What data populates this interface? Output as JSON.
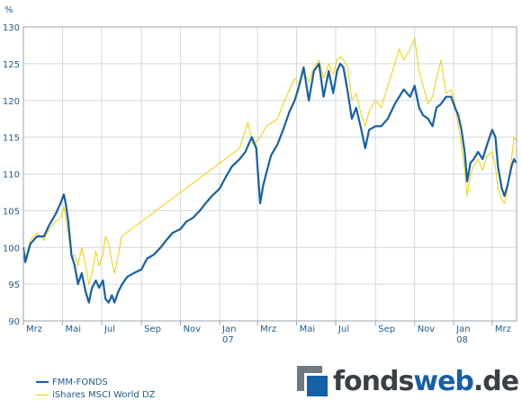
{
  "chart_data": {
    "type": "line",
    "unit_label": "%",
    "ylim": [
      90,
      130
    ],
    "y_ticks": [
      90,
      95,
      100,
      105,
      110,
      115,
      120,
      125,
      130
    ],
    "x_start": "2006-03-01",
    "x_end": "2008-04-08",
    "x_ticks": [
      {
        "date": "2006-03-01",
        "label": "Mrz",
        "year": ""
      },
      {
        "date": "2006-05-01",
        "label": "Mai",
        "year": ""
      },
      {
        "date": "2006-07-01",
        "label": "Jul",
        "year": ""
      },
      {
        "date": "2006-09-01",
        "label": "Sep",
        "year": ""
      },
      {
        "date": "2006-11-01",
        "label": "Nov",
        "year": ""
      },
      {
        "date": "2007-01-01",
        "label": "Jan",
        "year": "07"
      },
      {
        "date": "2007-03-01",
        "label": "Mrz",
        "year": ""
      },
      {
        "date": "2007-05-01",
        "label": "Mai",
        "year": ""
      },
      {
        "date": "2007-07-01",
        "label": "Jul",
        "year": ""
      },
      {
        "date": "2007-09-01",
        "label": "Sep",
        "year": ""
      },
      {
        "date": "2007-11-01",
        "label": "Nov",
        "year": ""
      },
      {
        "date": "2008-01-01",
        "label": "Jan",
        "year": "08"
      },
      {
        "date": "2008-03-01",
        "label": "Mrz",
        "year": ""
      }
    ],
    "grid": true,
    "legend_position": "bottom-left",
    "series": [
      {
        "name": "FMM-FONDS",
        "color": "#1560a8",
        "points": [
          [
            "2006-03-01",
            100
          ],
          [
            "2006-03-04",
            98.0
          ],
          [
            "2006-03-12",
            100.5
          ],
          [
            "2006-03-22",
            101.5
          ],
          [
            "2006-04-02",
            101.5
          ],
          [
            "2006-04-10",
            103.0
          ],
          [
            "2006-04-20",
            104.5
          ],
          [
            "2006-04-28",
            106.0
          ],
          [
            "2006-05-03",
            107.2
          ],
          [
            "2006-05-06",
            106.0
          ],
          [
            "2006-05-10",
            103.5
          ],
          [
            "2006-05-15",
            99.0
          ],
          [
            "2006-05-20",
            97.5
          ],
          [
            "2006-05-25",
            95.0
          ],
          [
            "2006-05-31",
            96.5
          ],
          [
            "2006-06-06",
            94.0
          ],
          [
            "2006-06-11",
            92.5
          ],
          [
            "2006-06-16",
            94.5
          ],
          [
            "2006-06-22",
            95.5
          ],
          [
            "2006-06-27",
            94.5
          ],
          [
            "2006-07-03",
            95.5
          ],
          [
            "2006-07-07",
            93.0
          ],
          [
            "2006-07-12",
            92.5
          ],
          [
            "2006-07-17",
            93.5
          ],
          [
            "2006-07-21",
            92.5
          ],
          [
            "2006-07-27",
            94.0
          ],
          [
            "2006-08-02",
            95.0
          ],
          [
            "2006-08-10",
            96.0
          ],
          [
            "2006-08-20",
            96.5
          ],
          [
            "2006-09-01",
            97.0
          ],
          [
            "2006-09-10",
            98.5
          ],
          [
            "2006-09-20",
            99.0
          ],
          [
            "2006-10-01",
            100.0
          ],
          [
            "2006-10-10",
            101.0
          ],
          [
            "2006-10-20",
            102.0
          ],
          [
            "2006-11-01",
            102.5
          ],
          [
            "2006-11-10",
            103.5
          ],
          [
            "2006-11-20",
            104.0
          ],
          [
            "2006-12-01",
            105.0
          ],
          [
            "2006-12-10",
            106.0
          ],
          [
            "2006-12-20",
            107.0
          ],
          [
            "2007-01-01",
            108.0
          ],
          [
            "2007-01-10",
            109.5
          ],
          [
            "2007-01-20",
            111.0
          ],
          [
            "2007-02-01",
            112.0
          ],
          [
            "2007-02-10",
            113.0
          ],
          [
            "2007-02-20",
            115.0
          ],
          [
            "2007-02-27",
            113.5
          ],
          [
            "2007-03-05",
            106.0
          ],
          [
            "2007-03-10",
            108.5
          ],
          [
            "2007-03-16",
            110.5
          ],
          [
            "2007-03-22",
            112.5
          ],
          [
            "2007-04-01",
            114.0
          ],
          [
            "2007-04-10",
            116.0
          ],
          [
            "2007-04-20",
            118.5
          ],
          [
            "2007-04-28",
            120.0
          ],
          [
            "2007-05-05",
            122.0
          ],
          [
            "2007-05-12",
            124.5
          ],
          [
            "2007-05-20",
            120.0
          ],
          [
            "2007-05-28",
            124.0
          ],
          [
            "2007-06-05",
            125.0
          ],
          [
            "2007-06-12",
            120.5
          ],
          [
            "2007-06-20",
            124.0
          ],
          [
            "2007-06-27",
            121.0
          ],
          [
            "2007-07-03",
            124.0
          ],
          [
            "2007-07-08",
            125.0
          ],
          [
            "2007-07-13",
            124.5
          ],
          [
            "2007-07-20",
            121.0
          ],
          [
            "2007-07-26",
            117.5
          ],
          [
            "2007-08-02",
            119.0
          ],
          [
            "2007-08-10",
            116.0
          ],
          [
            "2007-08-16",
            113.5
          ],
          [
            "2007-08-22",
            116.0
          ],
          [
            "2007-09-01",
            116.5
          ],
          [
            "2007-09-10",
            116.5
          ],
          [
            "2007-09-20",
            117.5
          ],
          [
            "2007-10-01",
            119.5
          ],
          [
            "2007-10-08",
            120.5
          ],
          [
            "2007-10-15",
            121.5
          ],
          [
            "2007-10-25",
            120.5
          ],
          [
            "2007-11-01",
            122.0
          ],
          [
            "2007-11-08",
            119.0
          ],
          [
            "2007-11-14",
            118.0
          ],
          [
            "2007-11-22",
            117.5
          ],
          [
            "2007-11-29",
            116.5
          ],
          [
            "2007-12-05",
            119.0
          ],
          [
            "2007-12-12",
            119.5
          ],
          [
            "2007-12-20",
            120.5
          ],
          [
            "2007-12-28",
            120.5
          ],
          [
            "2008-01-03",
            119.0
          ],
          [
            "2008-01-08",
            118.0
          ],
          [
            "2008-01-13",
            116.0
          ],
          [
            "2008-01-18",
            113.0
          ],
          [
            "2008-01-22",
            109.0
          ],
          [
            "2008-01-27",
            111.5
          ],
          [
            "2008-02-01",
            112.0
          ],
          [
            "2008-02-08",
            113.0
          ],
          [
            "2008-02-15",
            112.0
          ],
          [
            "2008-02-22",
            114.0
          ],
          [
            "2008-03-01",
            116.0
          ],
          [
            "2008-03-06",
            115.0
          ],
          [
            "2008-03-10",
            111.0
          ],
          [
            "2008-03-16",
            108.0
          ],
          [
            "2008-03-20",
            107.0
          ],
          [
            "2008-03-25",
            108.5
          ],
          [
            "2008-03-31",
            111.0
          ],
          [
            "2008-04-04",
            112.0
          ],
          [
            "2008-04-08",
            111.5
          ]
        ]
      },
      {
        "name": "iShares MSCI World DZ",
        "color": "#f5d000",
        "points": [
          [
            "2006-03-01",
            100
          ],
          [
            "2006-03-04",
            98.5
          ],
          [
            "2006-03-12",
            101.0
          ],
          [
            "2006-03-22",
            102.0
          ],
          [
            "2006-04-02",
            101.0
          ],
          [
            "2006-04-10",
            102.5
          ],
          [
            "2006-04-20",
            103.5
          ],
          [
            "2006-04-28",
            104.0
          ],
          [
            "2006-05-03",
            105.5
          ],
          [
            "2006-05-06",
            104.0
          ],
          [
            "2006-05-10",
            102.0
          ],
          [
            "2006-05-15",
            98.5
          ],
          [
            "2006-05-20",
            99.0
          ],
          [
            "2006-05-25",
            97.5
          ],
          [
            "2006-05-31",
            100.0
          ],
          [
            "2006-06-06",
            97.5
          ],
          [
            "2006-06-11",
            95.0
          ],
          [
            "2006-06-16",
            96.5
          ],
          [
            "2006-06-22",
            99.5
          ],
          [
            "2006-06-27",
            97.5
          ],
          [
            "2006-07-03",
            99.0
          ],
          [
            "2006-07-07",
            101.5
          ],
          [
            "2006-07-12",
            100.5
          ],
          [
            "2006-07-17",
            98.0
          ],
          [
            "2006-07-21",
            96.5
          ],
          [
            "2006-07-27",
            99.0
          ],
          [
            "2006-08-01",
            101.5
          ],
          [
            "2007-02-01",
            113.5
          ],
          [
            "2007-02-14",
            117.0
          ],
          [
            "2007-02-22",
            114.0
          ],
          [
            "2007-03-01",
            114.5
          ],
          [
            "2007-03-15",
            116.5
          ],
          [
            "2007-04-01",
            117.5
          ],
          [
            "2007-04-10",
            119.5
          ],
          [
            "2007-04-20",
            121.5
          ],
          [
            "2007-04-28",
            123.0
          ],
          [
            "2007-05-05",
            122.0
          ],
          [
            "2007-05-12",
            124.0
          ],
          [
            "2007-05-20",
            122.5
          ],
          [
            "2007-05-28",
            124.5
          ],
          [
            "2007-06-05",
            125.5
          ],
          [
            "2007-06-12",
            123.0
          ],
          [
            "2007-06-20",
            125.0
          ],
          [
            "2007-06-27",
            123.5
          ],
          [
            "2007-07-03",
            125.5
          ],
          [
            "2007-07-08",
            126.0
          ],
          [
            "2007-07-13",
            125.5
          ],
          [
            "2007-07-20",
            124.5
          ],
          [
            "2007-07-26",
            120.0
          ],
          [
            "2007-08-02",
            121.0
          ],
          [
            "2007-08-10",
            118.0
          ],
          [
            "2007-08-16",
            116.5
          ],
          [
            "2007-08-22",
            118.5
          ],
          [
            "2007-09-01",
            120.0
          ],
          [
            "2007-09-10",
            119.0
          ],
          [
            "2007-09-20",
            122.0
          ],
          [
            "2007-10-01",
            125.0
          ],
          [
            "2007-10-08",
            127.0
          ],
          [
            "2007-10-15",
            125.5
          ],
          [
            "2007-10-25",
            127.0
          ],
          [
            "2007-11-01",
            128.5
          ],
          [
            "2007-11-08",
            124.0
          ],
          [
            "2007-11-14",
            122.0
          ],
          [
            "2007-11-22",
            119.5
          ],
          [
            "2007-11-29",
            120.5
          ],
          [
            "2007-12-05",
            123.0
          ],
          [
            "2007-12-12",
            125.5
          ],
          [
            "2007-12-20",
            121.0
          ],
          [
            "2007-12-28",
            121.5
          ],
          [
            "2008-01-03",
            119.5
          ],
          [
            "2008-01-08",
            116.5
          ],
          [
            "2008-01-13",
            114.0
          ],
          [
            "2008-01-18",
            110.5
          ],
          [
            "2008-01-22",
            107.0
          ],
          [
            "2008-01-27",
            110.0
          ],
          [
            "2008-02-01",
            111.0
          ],
          [
            "2008-02-08",
            112.0
          ],
          [
            "2008-02-15",
            110.5
          ],
          [
            "2008-02-22",
            112.5
          ],
          [
            "2008-03-01",
            113.0
          ],
          [
            "2008-03-06",
            111.0
          ],
          [
            "2008-03-10",
            108.0
          ],
          [
            "2008-03-16",
            106.5
          ],
          [
            "2008-03-20",
            106.0
          ],
          [
            "2008-03-25",
            108.0
          ],
          [
            "2008-03-31",
            112.0
          ],
          [
            "2008-04-04",
            115.0
          ],
          [
            "2008-04-08",
            114.5
          ]
        ]
      }
    ]
  },
  "legend": {
    "items": [
      {
        "label": "FMM-FONDS"
      },
      {
        "label": "iShares MSCI World DZ"
      }
    ]
  },
  "logo": {
    "part_a": "fonds",
    "part_b": "web",
    "part_c": ".de"
  }
}
